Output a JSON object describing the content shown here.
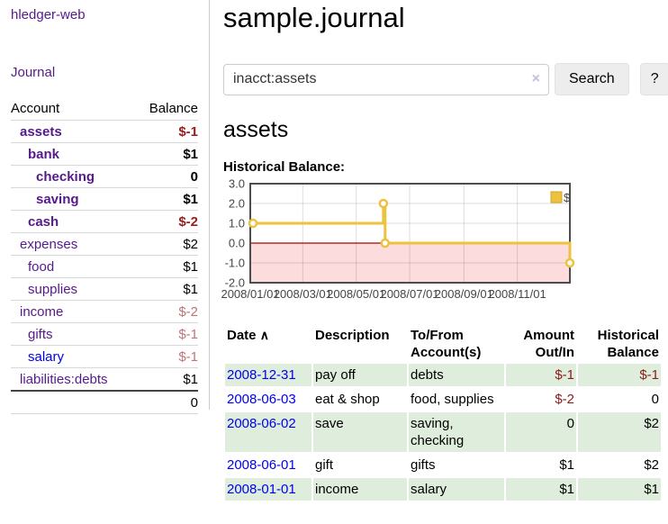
{
  "app": {
    "brand": "hledger-web",
    "nav_journal": "Journal"
  },
  "sidebar": {
    "accounts_header": {
      "account": "Account",
      "balance": "Balance"
    },
    "accounts": [
      {
        "name": "assets",
        "balance": "$-1"
      },
      {
        "name": "bank",
        "balance": "$1"
      },
      {
        "name": "checking",
        "balance": "0"
      },
      {
        "name": "saving",
        "balance": "$1"
      },
      {
        "name": "cash",
        "balance": "$-2"
      },
      {
        "name": "expenses",
        "balance": "$2"
      },
      {
        "name": "food",
        "balance": "$1"
      },
      {
        "name": "supplies",
        "balance": "$1"
      },
      {
        "name": "income",
        "balance": "$-2"
      },
      {
        "name": "gifts",
        "balance": "$-1"
      },
      {
        "name": "salary",
        "balance": "$-1"
      },
      {
        "name": "liabilities:debts",
        "balance": "$1"
      }
    ],
    "total": "0"
  },
  "header": {
    "title": "sample.journal"
  },
  "search": {
    "value": "inacct:assets",
    "clear_icon": "×",
    "button": "Search",
    "help_button": "?"
  },
  "account_page": {
    "heading": "assets",
    "chart_label": "Historical Balance:"
  },
  "chart_data": {
    "type": "line",
    "step": true,
    "title": "Historical Balance",
    "x_range": [
      "2008-01-01",
      "2008-12-31"
    ],
    "ylim": [
      -2,
      3
    ],
    "y_ticks": [
      {
        "v": 3,
        "label": "3.0"
      },
      {
        "v": 2,
        "label": "2.0"
      },
      {
        "v": 1,
        "label": "1.0"
      },
      {
        "v": 0,
        "label": "0.0"
      },
      {
        "v": -1,
        "label": "-1.0"
      },
      {
        "v": -2,
        "label": "-2.0"
      }
    ],
    "x_ticks": [
      {
        "date": "2008-01-01",
        "label": "2008/01/01"
      },
      {
        "date": "2008-03-01",
        "label": "2008/03/01"
      },
      {
        "date": "2008-05-01",
        "label": "2008/05/01"
      },
      {
        "date": "2008-07-01",
        "label": "2008/07/01"
      },
      {
        "date": "2008-09-01",
        "label": "2008/09/01"
      },
      {
        "date": "2008-11-01",
        "label": "2008/11/01"
      }
    ],
    "series": [
      {
        "name": "$",
        "color": "#edc240",
        "points": [
          [
            "2008-01-01",
            1
          ],
          [
            "2008-06-01",
            2
          ],
          [
            "2008-06-03",
            0
          ],
          [
            "2008-12-31",
            -1
          ]
        ]
      }
    ],
    "legend": {
      "label": "$",
      "position": "top-right"
    },
    "negative_region_color": "#fcdcdc",
    "zero_line_color": "#aa0000",
    "grid": true
  },
  "register": {
    "columns": {
      "date": "Date",
      "description": "Description",
      "accounts": "To/From Account(s)",
      "amount": "Amount Out/In",
      "balance": "Historical Balance"
    },
    "sort_icon": "∧",
    "rows": [
      {
        "date": "2008-12-31",
        "description": "pay off",
        "accounts": "debts",
        "amount": "$-1",
        "balance": "$-1"
      },
      {
        "date": "2008-06-03",
        "description": "eat & shop",
        "accounts": "food, supplies",
        "amount": "$-2",
        "balance": "0"
      },
      {
        "date": "2008-06-02",
        "description": "save",
        "accounts": "saving, checking",
        "amount": "0",
        "balance": "$2"
      },
      {
        "date": "2008-06-01",
        "description": "gift",
        "accounts": "gifts",
        "amount": "$1",
        "balance": "$2"
      },
      {
        "date": "2008-01-01",
        "description": "income",
        "accounts": "salary",
        "amount": "$1",
        "balance": "$1"
      }
    ]
  }
}
